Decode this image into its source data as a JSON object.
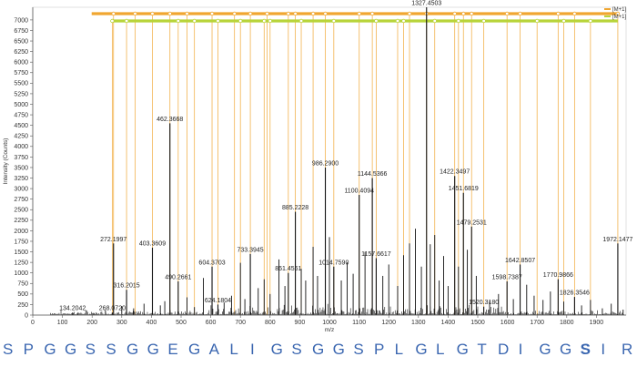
{
  "chart_data": {
    "type": "bar",
    "xlabel": "m/z",
    "ylabel": "Intensity (Counts)",
    "xlim": [
      0,
      2000
    ],
    "ylim": [
      0,
      7300
    ],
    "xticks": [
      0,
      100,
      200,
      300,
      400,
      500,
      600,
      700,
      800,
      900,
      1000,
      1100,
      1200,
      1300,
      1400,
      1500,
      1600,
      1700,
      1800,
      1900
    ],
    "yticks": [
      0,
      250,
      500,
      750,
      1000,
      1250,
      1500,
      1750,
      2000,
      2250,
      2500,
      2750,
      3000,
      3250,
      3500,
      3750,
      4000,
      4250,
      4500,
      4750,
      5000,
      5250,
      5500,
      5750,
      6000,
      6250,
      6500,
      6750,
      7000
    ],
    "labeled_peaks": [
      {
        "mz": 134.2042,
        "intensity": 60,
        "label": "134.2042"
      },
      {
        "mz": 268.072,
        "intensity": 60,
        "label": "268.0720"
      },
      {
        "mz": 272.1997,
        "intensity": 1700,
        "label": "272.1997"
      },
      {
        "mz": 316.2015,
        "intensity": 600,
        "label": "316.2015"
      },
      {
        "mz": 403.3609,
        "intensity": 1600,
        "label": "403.3609"
      },
      {
        "mz": 462.3668,
        "intensity": 4550,
        "label": "462.3668"
      },
      {
        "mz": 490.2661,
        "intensity": 800,
        "label": "490.2661"
      },
      {
        "mz": 604.3703,
        "intensity": 1150,
        "label": "604.3703"
      },
      {
        "mz": 624.1804,
        "intensity": 250,
        "label": "624.1804"
      },
      {
        "mz": 733.3945,
        "intensity": 1450,
        "label": "733.3945"
      },
      {
        "mz": 861.4561,
        "intensity": 1000,
        "label": "861.4561"
      },
      {
        "mz": 885.2228,
        "intensity": 2450,
        "label": "885.2228"
      },
      {
        "mz": 986.29,
        "intensity": 3500,
        "label": "986.2900"
      },
      {
        "mz": 1014.759,
        "intensity": 1150,
        "label": "1014.7590"
      },
      {
        "mz": 1100.4094,
        "intensity": 2850,
        "label": "1100.4094"
      },
      {
        "mz": 1144.5366,
        "intensity": 3250,
        "label": "1144.5366"
      },
      {
        "mz": 1157.6617,
        "intensity": 1350,
        "label": "1157.6617"
      },
      {
        "mz": 1327.4503,
        "intensity": 7300,
        "label": "1327.4503"
      },
      {
        "mz": 1422.3497,
        "intensity": 3300,
        "label": "1422.3497"
      },
      {
        "mz": 1451.6819,
        "intensity": 2900,
        "label": "1451.6819"
      },
      {
        "mz": 1479.2531,
        "intensity": 2100,
        "label": "1479.2531"
      },
      {
        "mz": 1520.318,
        "intensity": 200,
        "label": "1520.3180"
      },
      {
        "mz": 1598.7387,
        "intensity": 800,
        "label": "1598.7387"
      },
      {
        "mz": 1642.8507,
        "intensity": 1200,
        "label": "1642.8507"
      },
      {
        "mz": 1770.9866,
        "intensity": 850,
        "label": "1770.9866"
      },
      {
        "mz": 1826.3546,
        "intensity": 430,
        "label": "1826.3546"
      },
      {
        "mz": 1972.1477,
        "intensity": 1700,
        "label": "1972.1477"
      }
    ],
    "minor_peaks": [
      {
        "mz": 150,
        "intensity": 40
      },
      {
        "mz": 205,
        "intensity": 50
      },
      {
        "mz": 245,
        "intensity": 120
      },
      {
        "mz": 300,
        "intensity": 210
      },
      {
        "mz": 340,
        "intensity": 160
      },
      {
        "mz": 375,
        "intensity": 270
      },
      {
        "mz": 430,
        "intensity": 230
      },
      {
        "mz": 445,
        "intensity": 330
      },
      {
        "mz": 520,
        "intensity": 420
      },
      {
        "mz": 545,
        "intensity": 190
      },
      {
        "mz": 575,
        "intensity": 880
      },
      {
        "mz": 645,
        "intensity": 300
      },
      {
        "mz": 670,
        "intensity": 460
      },
      {
        "mz": 700,
        "intensity": 1240
      },
      {
        "mz": 715,
        "intensity": 380
      },
      {
        "mz": 760,
        "intensity": 640
      },
      {
        "mz": 780,
        "intensity": 850
      },
      {
        "mz": 800,
        "intensity": 500
      },
      {
        "mz": 830,
        "intensity": 1320
      },
      {
        "mz": 850,
        "intensity": 690
      },
      {
        "mz": 905,
        "intensity": 1100
      },
      {
        "mz": 920,
        "intensity": 820
      },
      {
        "mz": 945,
        "intensity": 1620
      },
      {
        "mz": 960,
        "intensity": 930
      },
      {
        "mz": 1000,
        "intensity": 1850
      },
      {
        "mz": 1040,
        "intensity": 820
      },
      {
        "mz": 1060,
        "intensity": 1250
      },
      {
        "mz": 1080,
        "intensity": 980
      },
      {
        "mz": 1120,
        "intensity": 1500
      },
      {
        "mz": 1180,
        "intensity": 930
      },
      {
        "mz": 1200,
        "intensity": 1200
      },
      {
        "mz": 1230,
        "intensity": 690
      },
      {
        "mz": 1250,
        "intensity": 1420
      },
      {
        "mz": 1270,
        "intensity": 1700
      },
      {
        "mz": 1290,
        "intensity": 2050
      },
      {
        "mz": 1310,
        "intensity": 1150
      },
      {
        "mz": 1340,
        "intensity": 1680
      },
      {
        "mz": 1355,
        "intensity": 1900
      },
      {
        "mz": 1370,
        "intensity": 820
      },
      {
        "mz": 1385,
        "intensity": 1400
      },
      {
        "mz": 1400,
        "intensity": 690
      },
      {
        "mz": 1435,
        "intensity": 1150
      },
      {
        "mz": 1465,
        "intensity": 1550
      },
      {
        "mz": 1495,
        "intensity": 930
      },
      {
        "mz": 1540,
        "intensity": 330
      },
      {
        "mz": 1570,
        "intensity": 500
      },
      {
        "mz": 1620,
        "intensity": 380
      },
      {
        "mz": 1665,
        "intensity": 720
      },
      {
        "mz": 1690,
        "intensity": 460
      },
      {
        "mz": 1720,
        "intensity": 360
      },
      {
        "mz": 1745,
        "intensity": 560
      },
      {
        "mz": 1790,
        "intensity": 320
      },
      {
        "mz": 1850,
        "intensity": 230
      },
      {
        "mz": 1880,
        "intensity": 360
      },
      {
        "mz": 1920,
        "intensity": 160
      },
      {
        "mz": 1950,
        "intensity": 270
      },
      {
        "mz": 1990,
        "intensity": 130
      }
    ],
    "fragment_lines_top": [
      272.2,
      345,
      403.36,
      462.37,
      520,
      604.37,
      680,
      733.39,
      790,
      861.46,
      885.22,
      945,
      986.29,
      1100.41,
      1144.54,
      1270,
      1327.45,
      1422.35,
      1451.68,
      1479.25,
      1598.74,
      1642.85,
      1770.99,
      1826.35,
      1972.15
    ],
    "fragment_lines_bottom": [
      268.07,
      316.2,
      490.27,
      545,
      624.18,
      700,
      780,
      800,
      905,
      1014.76,
      1157.66,
      1230,
      1250,
      1355,
      1435,
      1520.32,
      1700,
      1790,
      1880
    ],
    "series_colors": {
      "stem": "#111111",
      "fragment_line": "#f0a630",
      "annotation_top": "#f0a630",
      "annotation_bottom": "#b8d43a"
    },
    "legend": [
      "[M+1]",
      "[M+1]"
    ]
  },
  "sequence": [
    "S",
    "P",
    "G",
    "G",
    "S",
    "S",
    "G",
    "G",
    "E",
    "G",
    "A",
    "L",
    "I",
    "G",
    "S",
    "G",
    "G",
    "S",
    "P",
    "L",
    "G",
    "L",
    "G",
    "T",
    "D",
    "I",
    "G",
    "G",
    "S",
    "I",
    "R"
  ],
  "sequence_colors": {
    "residue": "#3a66b0"
  }
}
